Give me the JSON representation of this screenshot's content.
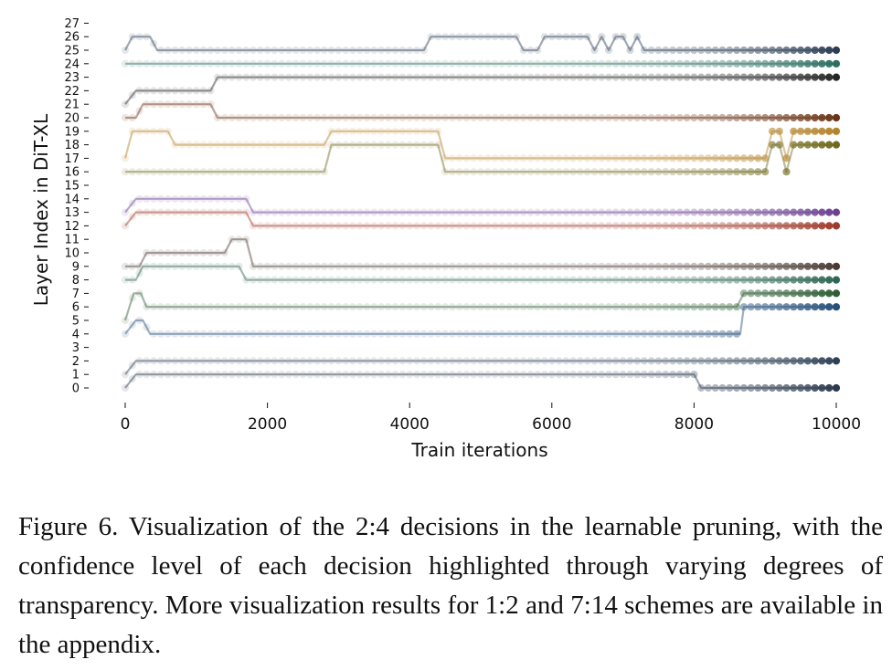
{
  "chart_data": {
    "type": "line",
    "xlabel": "Train iterations",
    "ylabel": "Layer Index in DiT-XL",
    "xlim": [
      0,
      10000
    ],
    "ylim": [
      0,
      27
    ],
    "xticks": [
      "0",
      "2000",
      "4000",
      "6000",
      "8000",
      "10000"
    ],
    "yticks": [
      "0",
      "1",
      "2",
      "3",
      "4",
      "5",
      "6",
      "7",
      "8",
      "9",
      "10",
      "11",
      "12",
      "13",
      "14",
      "15",
      "16",
      "17",
      "18",
      "19",
      "20",
      "21",
      "22",
      "23",
      "24",
      "25",
      "26",
      "27"
    ],
    "grid": false,
    "legend": "none",
    "series": [
      {
        "color": "#2b3a4e",
        "points": [
          [
            0,
            0
          ],
          [
            150,
            1
          ],
          [
            8000,
            1
          ],
          [
            8100,
            0
          ],
          [
            10000,
            0
          ]
        ]
      },
      {
        "color": "#2e4157",
        "points": [
          [
            0,
            1
          ],
          [
            150,
            2
          ],
          [
            10000,
            2
          ]
        ]
      },
      {
        "color": "#27507a",
        "points": [
          [
            0,
            4
          ],
          [
            150,
            5
          ],
          [
            250,
            5
          ],
          [
            350,
            4
          ],
          [
            8650,
            4
          ],
          [
            8700,
            6
          ],
          [
            10000,
            6
          ]
        ]
      },
      {
        "color": "#2f5e35",
        "points": [
          [
            0,
            5
          ],
          [
            120,
            7
          ],
          [
            220,
            7
          ],
          [
            300,
            6
          ],
          [
            8600,
            6
          ],
          [
            8700,
            7
          ],
          [
            10000,
            7
          ]
        ]
      },
      {
        "color": "#2f6654",
        "points": [
          [
            0,
            8
          ],
          [
            150,
            8
          ],
          [
            250,
            9
          ],
          [
            1600,
            9
          ],
          [
            1700,
            8
          ],
          [
            10000,
            8
          ]
        ]
      },
      {
        "color": "#4a3a33",
        "points": [
          [
            0,
            9
          ],
          [
            200,
            9
          ],
          [
            300,
            10
          ],
          [
            1400,
            10
          ],
          [
            1500,
            11
          ],
          [
            1700,
            11
          ],
          [
            1800,
            9
          ],
          [
            10000,
            9
          ]
        ]
      },
      {
        "color": "#a03a2a",
        "points": [
          [
            0,
            12
          ],
          [
            150,
            13
          ],
          [
            1700,
            13
          ],
          [
            1800,
            12
          ],
          [
            10000,
            12
          ]
        ]
      },
      {
        "color": "#6a4190",
        "points": [
          [
            0,
            13
          ],
          [
            150,
            14
          ],
          [
            1700,
            14
          ],
          [
            1800,
            13
          ],
          [
            10000,
            13
          ]
        ]
      },
      {
        "color": "#6e6a1e",
        "points": [
          [
            0,
            16
          ],
          [
            2800,
            16
          ],
          [
            2900,
            18
          ],
          [
            4400,
            18
          ],
          [
            4500,
            16
          ],
          [
            9000,
            16
          ],
          [
            9100,
            18
          ],
          [
            9200,
            18
          ],
          [
            9300,
            16
          ],
          [
            9400,
            18
          ],
          [
            10000,
            18
          ]
        ]
      },
      {
        "color": "#b5832a",
        "points": [
          [
            0,
            17
          ],
          [
            100,
            19
          ],
          [
            600,
            19
          ],
          [
            700,
            18
          ],
          [
            2800,
            18
          ],
          [
            2900,
            19
          ],
          [
            4400,
            19
          ],
          [
            4500,
            17
          ],
          [
            9000,
            17
          ],
          [
            9100,
            19
          ],
          [
            9200,
            19
          ],
          [
            9300,
            17
          ],
          [
            9400,
            19
          ],
          [
            10000,
            19
          ]
        ]
      },
      {
        "color": "#6b3416",
        "points": [
          [
            0,
            20
          ],
          [
            150,
            20
          ],
          [
            250,
            21
          ],
          [
            1200,
            21
          ],
          [
            1300,
            20
          ],
          [
            10000,
            20
          ]
        ]
      },
      {
        "color": "#262626",
        "points": [
          [
            0,
            21
          ],
          [
            150,
            22
          ],
          [
            1200,
            22
          ],
          [
            1300,
            23
          ],
          [
            10000,
            23
          ]
        ]
      },
      {
        "color": "#2c6e60",
        "points": [
          [
            0,
            24
          ],
          [
            10000,
            24
          ]
        ]
      },
      {
        "color": "#2a3d55",
        "points": [
          [
            0,
            25
          ],
          [
            100,
            26
          ],
          [
            350,
            26
          ],
          [
            450,
            25
          ],
          [
            4200,
            25
          ],
          [
            4300,
            26
          ],
          [
            5500,
            26
          ],
          [
            5600,
            25
          ],
          [
            5800,
            25
          ],
          [
            5900,
            26
          ],
          [
            6500,
            26
          ],
          [
            6600,
            25
          ],
          [
            6700,
            26
          ],
          [
            6800,
            25
          ],
          [
            6900,
            26
          ],
          [
            7000,
            26
          ],
          [
            7100,
            25
          ],
          [
            7200,
            26
          ],
          [
            7300,
            25
          ],
          [
            10000,
            25
          ]
        ]
      }
    ]
  },
  "caption": "Figure 6. Visualization of the 2:4 decisions in the learnable pruning, with the confidence level of each decision highlighted through varying degrees of transparency. More visualization results for 1:2 and 7:14 schemes are available in the appendix."
}
